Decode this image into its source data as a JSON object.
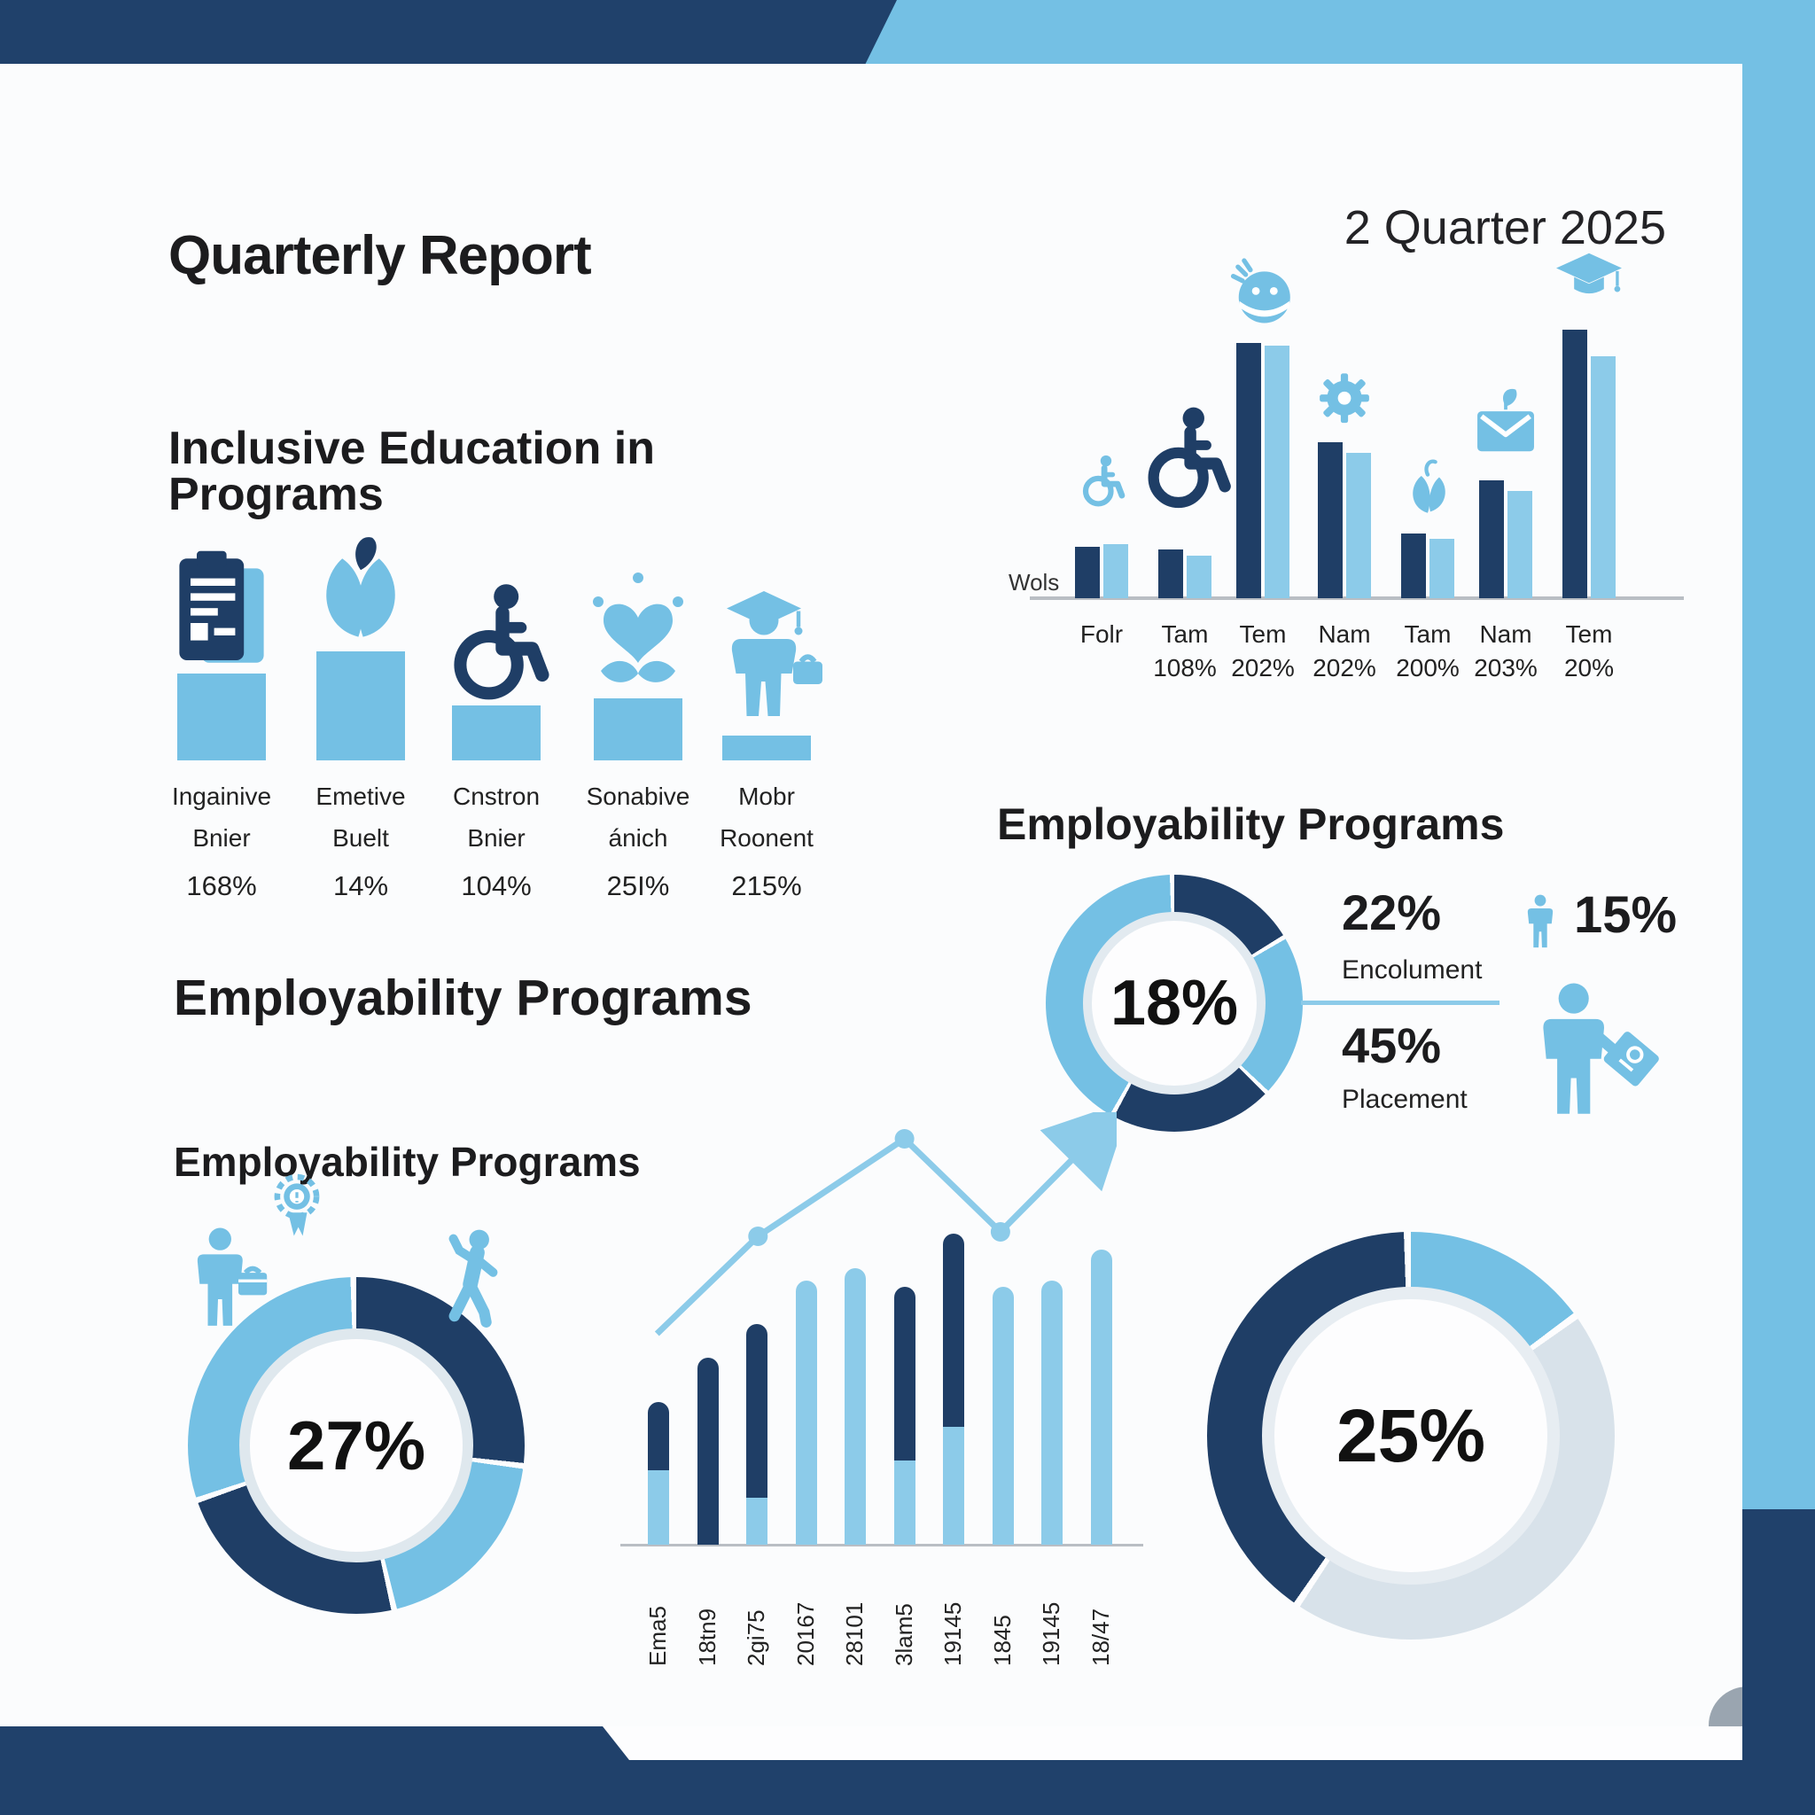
{
  "colors": {
    "navy": "#1f3e66",
    "blue": "#74c0e4",
    "blue_light": "#8ccbe9",
    "pale": "#d8e2ea",
    "frame_navy": "#20416b",
    "axis": "#b9bec4",
    "gray_circle": "#9aa5b0"
  },
  "header": {
    "title": "Quarterly Report",
    "quarter": "2 Quarter 2025",
    "subtitle": "Inclusive Education in\nPrograms"
  },
  "inclusive": {
    "items": [
      {
        "icon": "clipboard-icon",
        "line1": "Ingainive",
        "line2": "Bnier",
        "pct": "168%"
      },
      {
        "icon": "plant-icon",
        "line1": "Emetive",
        "line2": "Buelt",
        "pct": "14%"
      },
      {
        "icon": "wheelchair-icon",
        "line1": "Cnstron",
        "line2": "Bnier",
        "pct": "104%"
      },
      {
        "icon": "plant-heart-icon",
        "line1": "Sonabive",
        "line2": "ánich",
        "pct": "25I%"
      },
      {
        "icon": "graduate-icon",
        "line1": "Mobr",
        "line2": "Roonent",
        "pct": "215%"
      }
    ]
  },
  "right_section": {
    "heading": "Employability Programs",
    "stat1_pct": "22%",
    "stat1_label": "Encolument",
    "stat2_pct": "45%",
    "stat2_label": "Placement",
    "side_pct": "15%"
  },
  "left_section": {
    "heading_large": "Employability Programs",
    "heading_small": "Employability Programs"
  },
  "chart_data": [
    {
      "id": "quarterly-grouped-bar",
      "type": "bar",
      "title": "2 Quarter 2025",
      "xlabel": "",
      "ylabel": "Wols",
      "ylim": [
        0,
        100
      ],
      "grid": false,
      "legend": "none",
      "categories": [
        "Folr",
        "Tam",
        "Tem",
        "Nam",
        "Tam",
        "Nam",
        "Tem"
      ],
      "category_pcts": [
        "",
        "108%",
        "202%",
        "202%",
        "200%",
        "203%",
        "20%"
      ],
      "series": [
        {
          "name": "dark",
          "color": "#1f3e66",
          "values": [
            19,
            18,
            95,
            58,
            24,
            44,
            100
          ]
        },
        {
          "name": "light",
          "color": "#8ccbe9",
          "values": [
            20,
            16,
            94,
            54,
            22,
            40,
            90
          ]
        }
      ],
      "group_icons": [
        "wheelchair-small-icon",
        "wheelchair-icon",
        "face-icon",
        "gear-icon",
        "leaf-icon",
        "envelope-icon",
        "grad-cap-icon"
      ]
    },
    {
      "id": "enrollment-donut",
      "type": "pie",
      "center_label": "18%",
      "segments": [
        {
          "color": "navy",
          "degrees": 60
        },
        {
          "color": "blue",
          "degrees": 75
        },
        {
          "color": "navy",
          "degrees": 75
        },
        {
          "color": "blue",
          "degrees": 150
        }
      ]
    },
    {
      "id": "left-donut",
      "type": "pie",
      "center_label": "27%",
      "segments": [
        {
          "color": "navy",
          "degrees": 98
        },
        {
          "color": "blue",
          "degrees": 70
        },
        {
          "color": "navy",
          "degrees": 84
        },
        {
          "color": "blue",
          "degrees": 108
        }
      ]
    },
    {
      "id": "trend-stacked-bar",
      "type": "bar",
      "stacked": true,
      "ylim": [
        0,
        100
      ],
      "grid": false,
      "categories": [
        "Ema5",
        "18tn9",
        "2gi75",
        "20167",
        "28101",
        "3lam5",
        "19145",
        "1845",
        "19145",
        "18/47"
      ],
      "series": [
        {
          "name": "dark",
          "color": "#1f3e66",
          "values": [
            22,
            60,
            56,
            0,
            0,
            56,
            62,
            0,
            0,
            0
          ]
        },
        {
          "name": "light",
          "color": "#8ccbe9",
          "values": [
            24,
            0,
            15,
            85,
            89,
            27,
            38,
            83,
            85,
            95
          ]
        }
      ],
      "line_overlay": {
        "points_pct": [
          [
            9,
            50
          ],
          [
            29,
            28
          ],
          [
            58,
            6
          ],
          [
            77,
            27
          ],
          [
            97,
            4
          ]
        ],
        "dots_at": [
          1,
          2,
          3
        ],
        "arrow_end": true
      }
    },
    {
      "id": "bottom-right-donut",
      "type": "pie",
      "center_label": "25%",
      "segments": [
        {
          "color": "blue",
          "degrees": 55
        },
        {
          "color": "pale",
          "degrees": 160
        },
        {
          "color": "navy",
          "degrees": 145
        }
      ]
    }
  ]
}
